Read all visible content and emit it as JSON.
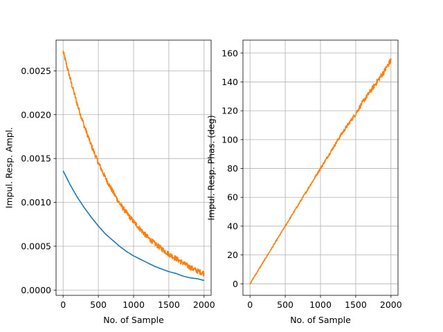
{
  "chart_data": [
    {
      "type": "line",
      "xlabel": "No. of Sample",
      "ylabel": "Impul. Resp. Ampl.",
      "xlim": [
        -100,
        2100
      ],
      "ylim": [
        -6e-05,
        0.00285
      ],
      "xticks": [
        0,
        500,
        1000,
        1500,
        2000
      ],
      "xtick_labels": [
        "0",
        "500",
        "1000",
        "1500",
        "2000"
      ],
      "yticks": [
        0.0,
        0.0005,
        0.001,
        0.0015,
        0.002,
        0.0025
      ],
      "ytick_labels": [
        "0.0000",
        "0.0005",
        "0.0010",
        "0.0015",
        "0.0020",
        "0.0025"
      ],
      "grid": true,
      "series": [
        {
          "color": "#1f77b4",
          "noisy": false,
          "x": [
            0,
            100,
            200,
            300,
            400,
            500,
            600,
            700,
            800,
            900,
            1000,
            1100,
            1200,
            1300,
            1400,
            1500,
            1600,
            1700,
            1800,
            1900,
            2000
          ],
          "y": [
            0.00136,
            0.0012,
            0.00106,
            0.00094,
            0.00083,
            0.00073,
            0.00064,
            0.00057,
            0.0005,
            0.00044,
            0.00039,
            0.00035,
            0.00031,
            0.00027,
            0.00024,
            0.00021,
            0.00019,
            0.00016,
            0.00014,
            0.00013,
            0.00011
          ]
        },
        {
          "color": "#ff7f0e",
          "noisy": true,
          "noise_amp": 3e-05,
          "x": [
            0,
            100,
            200,
            300,
            400,
            500,
            600,
            700,
            800,
            900,
            1000,
            1100,
            1200,
            1300,
            1400,
            1500,
            1600,
            1700,
            1800,
            1900,
            2000
          ],
          "y": [
            0.00272,
            0.00241,
            0.00212,
            0.00187,
            0.00165,
            0.00145,
            0.00128,
            0.00113,
            0.00099,
            0.00088,
            0.00078,
            0.00069,
            0.0006,
            0.00053,
            0.00047,
            0.00041,
            0.00036,
            0.00031,
            0.00026,
            0.00022,
            0.00019
          ]
        }
      ]
    },
    {
      "type": "line",
      "xlabel": "No. of Sample",
      "ylabel": "Impul. Resp. Phas. (deg)",
      "xlim": [
        -100,
        2100
      ],
      "ylim": [
        -8,
        169
      ],
      "xticks": [
        0,
        500,
        1000,
        1500,
        2000
      ],
      "xtick_labels": [
        "0",
        "500",
        "1000",
        "1500",
        "2000"
      ],
      "yticks": [
        0,
        20,
        40,
        60,
        80,
        100,
        120,
        140,
        160
      ],
      "ytick_labels": [
        "0",
        "20",
        "40",
        "60",
        "80",
        "100",
        "120",
        "140",
        "160"
      ],
      "grid": true,
      "series": [
        {
          "color": "#ff7f0e",
          "noisy": true,
          "noise_amp": 2.2,
          "x": [
            0,
            100,
            200,
            300,
            400,
            500,
            600,
            700,
            800,
            900,
            1000,
            1100,
            1200,
            1300,
            1400,
            1500,
            1600,
            1700,
            1800,
            1900,
            2000
          ],
          "y": [
            0,
            8,
            16,
            24,
            32,
            40,
            48,
            56,
            64,
            72,
            80,
            88,
            96,
            104,
            111,
            118,
            126,
            133,
            140,
            147,
            155
          ]
        }
      ]
    }
  ]
}
